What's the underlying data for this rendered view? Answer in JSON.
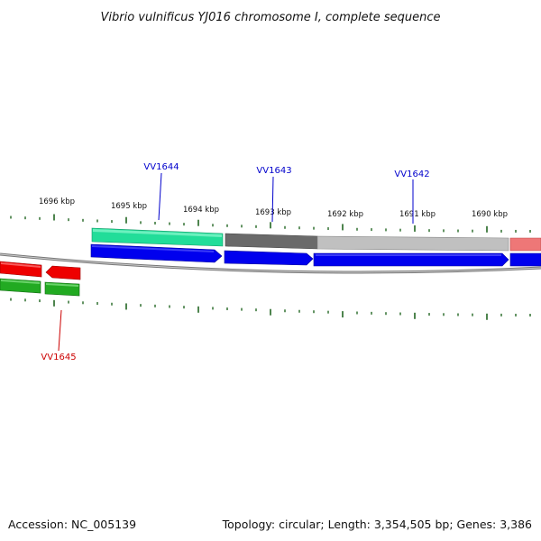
{
  "title": "Vibrio vulnificus YJ016 chromosome I, complete sequence",
  "footer": {
    "accession": "Accession: NC_005139",
    "summary": "Topology: circular; Length: 3,354,505 bp; Genes: 3,386"
  },
  "scale_labels": [
    "1696 kbp",
    "1695 kbp",
    "1694 kbp",
    "1693 kbp",
    "1692 kbp",
    "1691 kbp",
    "1690 kbp"
  ],
  "gene_labels": [
    {
      "name": "VV1644",
      "color": "#0000cc"
    },
    {
      "name": "VV1643",
      "color": "#0000cc"
    },
    {
      "name": "VV1642",
      "color": "#0000cc"
    },
    {
      "name": "VV1645",
      "color": "#cc0000"
    }
  ],
  "colors": {
    "cds_forward": "#0000ee",
    "cds_reverse": "#ee0000",
    "gene_green": "#22aa22",
    "teal_feature": "#22dd99",
    "dark_gray_feature": "#6a6a6a",
    "light_gray_feature": "#c0c0c0",
    "pink_feature": "#ee7777",
    "backbone": "#777777",
    "tick": "#226622"
  }
}
